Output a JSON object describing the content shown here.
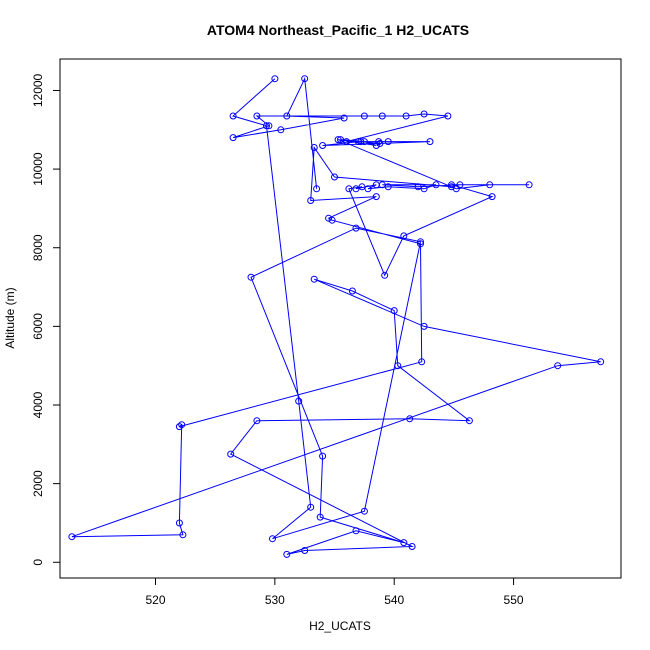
{
  "chart_data": {
    "type": "scatter",
    "title": "ATOM4 Northeast_Pacific_1 H2_UCATS",
    "xlabel": "H2_UCATS",
    "ylabel": "Altitude (m)",
    "xlim": [
      512,
      559
    ],
    "ylim": [
      -400,
      12800
    ],
    "xticks": [
      520,
      530,
      540,
      550
    ],
    "yticks": [
      0,
      2000,
      4000,
      6000,
      8000,
      10000,
      12000
    ],
    "grid": false,
    "legend": "none",
    "series_color": "#0000ff",
    "marker": "open-circle",
    "connect_points": true,
    "x": [
      533.5,
      532.5,
      531.0,
      535.8,
      530.5,
      526.5,
      529.5,
      528.5,
      537.5,
      539.0,
      541.0,
      542.5,
      544.5,
      536.0,
      543.0,
      534.0,
      537.0,
      539.5,
      538.7,
      538.8,
      537.2,
      535.5,
      537.5,
      538.5,
      535.3,
      545.2,
      548.0,
      551.3,
      544.8,
      548.2,
      540.8,
      539.2,
      536.2,
      537.3,
      536.8,
      538.5,
      537.8,
      539.5,
      542.5,
      543.5,
      539.0,
      542.0,
      545.5,
      544.8,
      535.0,
      533.3,
      533.0,
      538.5,
      534.5,
      534.8,
      542.2,
      542.3,
      522.0,
      522.2,
      522.0,
      522.3,
      513.0,
      553.7,
      557.3,
      542.5,
      533.3,
      536.5,
      540.0,
      540.3,
      546.3,
      541.3,
      528.5,
      526.3,
      541.5,
      532.5,
      531.0,
      536.8,
      540.8,
      533.8,
      534.0,
      528.0,
      536.8,
      542.2,
      537.5,
      529.8,
      533.0,
      532.0,
      529.3,
      526.5,
      530.0
    ],
    "y": [
      9500,
      12300,
      11350,
      11300,
      11000,
      10800,
      11100,
      11350,
      11350,
      11350,
      11350,
      11400,
      11350,
      10700,
      10700,
      10600,
      10700,
      10700,
      10700,
      10650,
      10700,
      10750,
      10700,
      10600,
      10750,
      9500,
      9600,
      9600,
      9600,
      9300,
      8300,
      7300,
      9500,
      9550,
      9500,
      9600,
      9500,
      9550,
      9500,
      9600,
      9600,
      9550,
      9600,
      9550,
      9800,
      10550,
      9200,
      9300,
      8750,
      8700,
      8100,
      5100,
      3450,
      3500,
      1000,
      700,
      650,
      5000,
      5100,
      6000,
      7200,
      6900,
      6400,
      5000,
      3600,
      3650,
      3600,
      2750,
      400,
      300,
      200,
      800,
      500,
      1150,
      2700,
      7250,
      8500,
      8150,
      1300,
      600,
      1400,
      4100,
      11100,
      11350,
      12300
    ]
  }
}
